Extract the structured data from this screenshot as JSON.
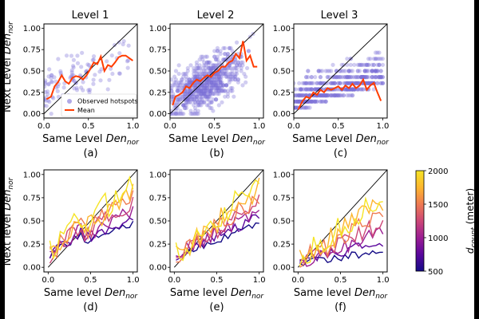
{
  "colors": {
    "figure_background": "#ffffff",
    "frame_background": "#000000",
    "scatter_point": "#7b6fd6",
    "mean_line": "#ff3c00",
    "diagonal": "#000000",
    "colormap": [
      "#140b86",
      "#5b079d",
      "#9a1d93",
      "#cc4777",
      "#ef7b52",
      "#fdb52e",
      "#f5e425"
    ]
  },
  "chart_data": [
    {
      "id": "a",
      "type": "scatter+line",
      "title": "Level 1",
      "panel_label": "(a)",
      "xlabel": "Same Level",
      "xlabel_italic": "Den",
      "xlabel_sub": "nor",
      "ylabel": "Next Level",
      "ylabel_italic": "Den",
      "ylabel_sub": "nor",
      "xlim": [
        0,
        1.05
      ],
      "ylim": [
        -0.05,
        1.05
      ],
      "xticks": [
        "0.0",
        "0.5",
        "1.0"
      ],
      "yticks": [
        "0.00",
        "0.25",
        "0.50",
        "0.75",
        "1.00"
      ],
      "legend": {
        "position": "bottom-right",
        "entries": [
          "Observed hotspots",
          "Mean"
        ]
      },
      "scatter_description": "Observed hotspots",
      "mean": {
        "name": "Mean",
        "x": [
          0.03,
          0.08,
          0.12,
          0.16,
          0.2,
          0.24,
          0.28,
          0.32,
          0.36,
          0.4,
          0.44,
          0.48,
          0.52,
          0.56,
          0.6,
          0.64,
          0.68,
          0.72,
          0.76,
          0.8,
          0.84,
          0.88,
          0.92,
          0.96,
          1.0
        ],
        "y": [
          0.17,
          0.2,
          0.32,
          0.37,
          0.45,
          0.38,
          0.35,
          0.42,
          0.44,
          0.43,
          0.4,
          0.45,
          0.52,
          0.6,
          0.58,
          0.67,
          0.5,
          0.57,
          0.55,
          0.6,
          0.66,
          0.68,
          0.68,
          0.65,
          0.62
        ]
      }
    },
    {
      "id": "b",
      "type": "scatter+line",
      "title": "Level 2",
      "panel_label": "(b)",
      "xlabel": "Same Level",
      "xlabel_italic": "Den",
      "xlabel_sub": "nor",
      "xlim": [
        0,
        1.05
      ],
      "ylim": [
        -0.05,
        1.05
      ],
      "xticks": [
        "0.0",
        "0.5",
        "1.0"
      ],
      "yticks": [
        "0.00",
        "0.25",
        "0.50",
        "0.75",
        "1.00"
      ],
      "scatter_description": "Observed hotspots",
      "mean": {
        "name": "Mean",
        "x": [
          0.03,
          0.06,
          0.1,
          0.14,
          0.18,
          0.22,
          0.26,
          0.3,
          0.34,
          0.38,
          0.42,
          0.46,
          0.5,
          0.54,
          0.58,
          0.62,
          0.66,
          0.7,
          0.74,
          0.78,
          0.82,
          0.86,
          0.9,
          0.94,
          0.98
        ],
        "y": [
          0.1,
          0.2,
          0.22,
          0.25,
          0.32,
          0.3,
          0.36,
          0.4,
          0.38,
          0.42,
          0.45,
          0.43,
          0.48,
          0.5,
          0.55,
          0.55,
          0.6,
          0.62,
          0.7,
          0.65,
          0.85,
          0.62,
          0.68,
          0.55,
          0.55
        ]
      }
    },
    {
      "id": "c",
      "type": "scatter+line",
      "title": "Level 3",
      "panel_label": "(c)",
      "xlabel": "Same Level",
      "xlabel_italic": "Den",
      "xlabel_sub": "nor",
      "xlim": [
        0,
        1.05
      ],
      "ylim": [
        -0.05,
        1.05
      ],
      "xticks": [
        "0.0",
        "0.5",
        "1.0"
      ],
      "yticks": [
        "0.00",
        "0.25",
        "0.50",
        "0.75",
        "1.00"
      ],
      "scatter_description": "Observed hotspots",
      "mean": {
        "name": "Mean",
        "x": [
          0.05,
          0.1,
          0.14,
          0.18,
          0.22,
          0.26,
          0.3,
          0.34,
          0.38,
          0.42,
          0.46,
          0.5,
          0.54,
          0.58,
          0.62,
          0.66,
          0.7,
          0.74,
          0.78,
          0.82,
          0.86,
          0.9,
          0.94,
          0.98
        ],
        "y": [
          0.05,
          0.15,
          0.2,
          0.18,
          0.25,
          0.22,
          0.28,
          0.25,
          0.3,
          0.28,
          0.3,
          0.32,
          0.28,
          0.33,
          0.3,
          0.35,
          0.3,
          0.33,
          0.4,
          0.28,
          0.33,
          0.36,
          0.25,
          0.15
        ]
      }
    },
    {
      "id": "d",
      "type": "line",
      "panel_label": "(d)",
      "xlabel": "Same level",
      "xlabel_italic": "Den",
      "xlabel_sub": "nor",
      "ylabel": "Next level",
      "ylabel_italic": "Den",
      "ylabel_sub": "nor",
      "xlim": [
        -0.05,
        1.05
      ],
      "ylim": [
        -0.05,
        1.05
      ],
      "xticks": [
        "0.0",
        "0.5",
        "1.0"
      ],
      "yticks": [
        "0.00",
        "0.25",
        "0.50",
        "0.75",
        "1.00"
      ],
      "series_dcount": [
        500,
        750,
        1000,
        1250,
        1500,
        1750,
        2000
      ]
    },
    {
      "id": "e",
      "type": "line",
      "panel_label": "(e)",
      "xlabel": "Same level",
      "xlabel_italic": "Den",
      "xlabel_sub": "nor",
      "xlim": [
        -0.05,
        1.05
      ],
      "ylim": [
        -0.05,
        1.05
      ],
      "xticks": [
        "0.0",
        "0.5",
        "1.0"
      ],
      "yticks": [
        "0.00",
        "0.25",
        "0.50",
        "0.75",
        "1.00"
      ],
      "series_dcount": [
        500,
        750,
        1000,
        1250,
        1500,
        1750,
        2000
      ]
    },
    {
      "id": "f",
      "type": "line",
      "panel_label": "(f)",
      "xlabel": "Same level",
      "xlabel_italic": "Den",
      "xlabel_sub": "nor",
      "xlim": [
        -0.05,
        1.05
      ],
      "ylim": [
        -0.05,
        1.05
      ],
      "xticks": [
        "0.0",
        "0.5",
        "1.0"
      ],
      "yticks": [
        "0.00",
        "0.25",
        "0.50",
        "0.75",
        "1.00"
      ],
      "series_dcount": [
        500,
        750,
        1000,
        1250,
        1500,
        1750,
        2000
      ]
    }
  ],
  "colorbar": {
    "label_main": "d",
    "label_sub": "count",
    "label_unit": "(meter)",
    "range": [
      500,
      2000
    ],
    "ticks": [
      "500",
      "1000",
      "1500",
      "2000"
    ]
  }
}
